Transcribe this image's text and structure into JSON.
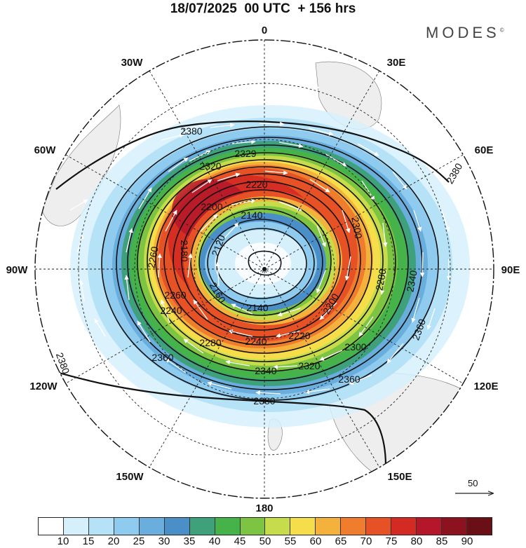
{
  "header": {
    "title": "18/07/2025  00 UTC  + 156 hrs",
    "brand": "MODES",
    "brand_mark": "©"
  },
  "map": {
    "projection": "polar-stereographic-south",
    "longitude_labels": {
      "top": "0",
      "top_right": "30E",
      "upper_right": "60E",
      "right": "90E",
      "lower_right": "120E",
      "bottom_right": "150E",
      "bottom": "180",
      "bottom_left": "150W",
      "lower_left": "120W",
      "left": "90W",
      "upper_left": "60W",
      "top_left": "30W"
    },
    "contour_labels": [
      "2380",
      "2329",
      "2320",
      "2220",
      "2200",
      "2140",
      "2120",
      "2180",
      "2260",
      "2240",
      "2160",
      "2140",
      "2240",
      "2220",
      "2200",
      "2280",
      "2340",
      "2300",
      "2320",
      "2340",
      "2360",
      "2380",
      "2360",
      "2380",
      "2360",
      "2280",
      "2300",
      "2260",
      "2380"
    ],
    "reference_vector": "50"
  },
  "colorbar": {
    "ticks": [
      "10",
      "15",
      "20",
      "25",
      "30",
      "35",
      "40",
      "45",
      "50",
      "55",
      "60",
      "65",
      "70",
      "75",
      "80",
      "85",
      "90"
    ],
    "colors": [
      "#ffffff",
      "#d6f0fb",
      "#b5e2f7",
      "#8fcbee",
      "#6aaede",
      "#4a8fc8",
      "#3fa07c",
      "#45b24a",
      "#7dc442",
      "#c6dc4a",
      "#f6dd4a",
      "#f4b23c",
      "#f07d2e",
      "#e65225",
      "#d42a24",
      "#b5172a",
      "#8c1220",
      "#6b0f17"
    ]
  }
}
